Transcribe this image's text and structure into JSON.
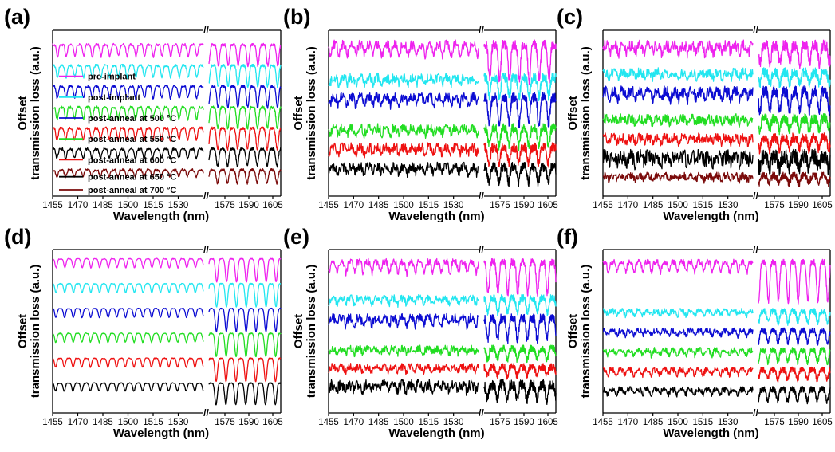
{
  "figure": {
    "x_axis_title": "Wavelength (nm)",
    "y_axis_title_lines": [
      "Offset",
      "transmission loss (a.u.)"
    ],
    "break_mark": "//",
    "x_ticks_left": [
      "1455",
      "1470",
      "1485",
      "1500",
      "1515",
      "1530"
    ],
    "x_ticks_right": [
      "1575",
      "1590",
      "1605"
    ],
    "series_colors": [
      "#ee22ee",
      "#22e6f0",
      "#0b0bd2",
      "#22dd22",
      "#ee1111",
      "#000000",
      "#7a0a0a"
    ]
  },
  "chart_data": [
    {
      "type": "line",
      "panel": "(a)",
      "title": "",
      "xlabel": "Wavelength (nm)",
      "ylabel": "Offset transmission loss (a.u.)",
      "x_ranges": [
        [
          1455,
          1545
        ],
        [
          1565,
          1610
        ]
      ],
      "legend": [
        "pre-implant",
        "post-implant",
        "post-anneal at 500 °C",
        "post-anneal at 550 °C",
        "post-anneal at 600 °C",
        "post-anneal at 650 °C",
        "post-anneal at 700 °C"
      ],
      "series": [
        {
          "name": "pre-implant",
          "color": "#ee22ee",
          "offset": 0.0,
          "amp_left": 0.9,
          "amp_right": 1.6,
          "noise": 0.1
        },
        {
          "name": "post-implant",
          "color": "#22e6f0",
          "offset": -1.6,
          "amp_left": 0.9,
          "amp_right": 1.6,
          "noise": 0.1
        },
        {
          "name": "post-anneal at 500 °C",
          "color": "#0b0bd2",
          "offset": -3.2,
          "amp_left": 0.9,
          "amp_right": 1.6,
          "noise": 0.1
        },
        {
          "name": "post-anneal at 550 °C",
          "color": "#22dd22",
          "offset": -4.8,
          "amp_left": 0.9,
          "amp_right": 1.6,
          "noise": 0.1
        },
        {
          "name": "post-anneal at 600 °C",
          "color": "#ee1111",
          "offset": -6.4,
          "amp_left": 0.9,
          "amp_right": 1.6,
          "noise": 0.1
        },
        {
          "name": "post-anneal at 650 °C",
          "color": "#000000",
          "offset": -8.0,
          "amp_left": 0.7,
          "amp_right": 1.3,
          "noise": 0.1
        },
        {
          "name": "post-anneal at 700 °C",
          "color": "#7a0a0a",
          "offset": -9.6,
          "amp_left": 0.5,
          "amp_right": 1.0,
          "noise": 0.1
        }
      ]
    },
    {
      "type": "line",
      "panel": "(b)",
      "title": "",
      "xlabel": "Wavelength (nm)",
      "ylabel": "Offset transmission loss (a.u.)",
      "x_ranges": [
        [
          1455,
          1545
        ],
        [
          1565,
          1610
        ]
      ],
      "series": [
        {
          "name": "pre-implant",
          "color": "#ee22ee",
          "offset": 0.0,
          "amp_left": 1.0,
          "amp_right": 3.6,
          "noise": 0.5
        },
        {
          "name": "post-implant",
          "color": "#22e6f0",
          "offset": -3.4,
          "amp_left": 0.6,
          "amp_right": 2.0,
          "noise": 0.5
        },
        {
          "name": "post-anneal at 500 °C",
          "color": "#0b0bd2",
          "offset": -5.4,
          "amp_left": 0.8,
          "amp_right": 2.8,
          "noise": 0.5
        },
        {
          "name": "post-anneal at 550 °C",
          "color": "#22dd22",
          "offset": -8.6,
          "amp_left": 0.6,
          "amp_right": 1.8,
          "noise": 0.5
        },
        {
          "name": "post-anneal at 600 °C",
          "color": "#ee1111",
          "offset": -10.6,
          "amp_left": 0.6,
          "amp_right": 1.6,
          "noise": 0.5
        },
        {
          "name": "post-anneal at 650 °C",
          "color": "#000000",
          "offset": -12.6,
          "amp_left": 0.6,
          "amp_right": 1.6,
          "noise": 0.5
        }
      ]
    },
    {
      "type": "line",
      "panel": "(c)",
      "title": "",
      "xlabel": "Wavelength (nm)",
      "ylabel": "Offset transmission loss (a.u.)",
      "x_ranges": [
        [
          1455,
          1545
        ],
        [
          1565,
          1610
        ]
      ],
      "series": [
        {
          "name": "pre-implant",
          "color": "#ee22ee",
          "offset": 0.0,
          "amp_left": 0.8,
          "amp_right": 1.8,
          "noise": 0.6
        },
        {
          "name": "post-implant",
          "color": "#22e6f0",
          "offset": -2.8,
          "amp_left": 0.5,
          "amp_right": 1.2,
          "noise": 0.5
        },
        {
          "name": "post-anneal at 500 °C",
          "color": "#0b0bd2",
          "offset": -4.8,
          "amp_left": 0.8,
          "amp_right": 2.0,
          "noise": 0.6
        },
        {
          "name": "post-anneal at 550 °C",
          "color": "#22dd22",
          "offset": -7.6,
          "amp_left": 0.5,
          "amp_right": 1.2,
          "noise": 0.5
        },
        {
          "name": "post-anneal at 600 °C",
          "color": "#ee1111",
          "offset": -9.6,
          "amp_left": 0.5,
          "amp_right": 1.2,
          "noise": 0.5
        },
        {
          "name": "post-anneal at 650 °C",
          "color": "#000000",
          "offset": -11.6,
          "amp_left": 0.6,
          "amp_right": 1.2,
          "noise": 0.8
        },
        {
          "name": "post-anneal at 700 °C",
          "color": "#7a0a0a",
          "offset": -13.6,
          "amp_left": 0.4,
          "amp_right": 0.8,
          "noise": 0.4
        }
      ]
    },
    {
      "type": "line",
      "panel": "(d)",
      "title": "",
      "xlabel": "Wavelength (nm)",
      "ylabel": "Offset transmission loss (a.u.)",
      "x_ranges": [
        [
          1455,
          1545
        ],
        [
          1565,
          1610
        ]
      ],
      "series": [
        {
          "name": "pre-implant",
          "color": "#ee22ee",
          "offset": 0.0,
          "amp_left": 1.0,
          "amp_right": 2.6,
          "noise": 0.05
        },
        {
          "name": "post-implant",
          "color": "#22e6f0",
          "offset": -2.8,
          "amp_left": 1.0,
          "amp_right": 2.6,
          "noise": 0.05
        },
        {
          "name": "post-anneal at 500 °C",
          "color": "#0b0bd2",
          "offset": -5.6,
          "amp_left": 1.0,
          "amp_right": 2.6,
          "noise": 0.05
        },
        {
          "name": "post-anneal at 550 °C",
          "color": "#22dd22",
          "offset": -8.4,
          "amp_left": 1.0,
          "amp_right": 2.6,
          "noise": 0.05
        },
        {
          "name": "post-anneal at 600 °C",
          "color": "#ee1111",
          "offset": -11.2,
          "amp_left": 1.0,
          "amp_right": 2.6,
          "noise": 0.05
        },
        {
          "name": "post-anneal at 650 °C",
          "color": "#000000",
          "offset": -14.0,
          "amp_left": 0.9,
          "amp_right": 2.4,
          "noise": 0.05
        }
      ]
    },
    {
      "type": "line",
      "panel": "(e)",
      "title": "",
      "xlabel": "Wavelength (nm)",
      "ylabel": "Offset transmission loss (a.u.)",
      "x_ranges": [
        [
          1455,
          1545
        ],
        [
          1565,
          1610
        ]
      ],
      "series": [
        {
          "name": "pre-implant",
          "color": "#ee22ee",
          "offset": 0.0,
          "amp_left": 1.2,
          "amp_right": 3.4,
          "noise": 0.4
        },
        {
          "name": "post-implant",
          "color": "#22e6f0",
          "offset": -4.0,
          "amp_left": 0.6,
          "amp_right": 1.6,
          "noise": 0.4
        },
        {
          "name": "post-anneal at 500 °C",
          "color": "#0b0bd2",
          "offset": -6.2,
          "amp_left": 0.8,
          "amp_right": 2.4,
          "noise": 0.5
        },
        {
          "name": "post-anneal at 550 °C",
          "color": "#22dd22",
          "offset": -9.6,
          "amp_left": 0.5,
          "amp_right": 1.2,
          "noise": 0.4
        },
        {
          "name": "post-anneal at 600 °C",
          "color": "#ee1111",
          "offset": -11.6,
          "amp_left": 0.5,
          "amp_right": 1.0,
          "noise": 0.4
        },
        {
          "name": "post-anneal at 650 °C",
          "color": "#000000",
          "offset": -13.6,
          "amp_left": 0.6,
          "amp_right": 1.6,
          "noise": 0.6
        }
      ]
    },
    {
      "type": "line",
      "panel": "(f)",
      "title": "",
      "xlabel": "Wavelength (nm)",
      "ylabel": "Offset transmission loss (a.u.)",
      "x_ranges": [
        [
          1455,
          1545
        ],
        [
          1565,
          1610
        ]
      ],
      "series": [
        {
          "name": "pre-implant",
          "color": "#ee22ee",
          "offset": 0.0,
          "amp_left": 1.0,
          "amp_right": 4.0,
          "noise": 0.3
        },
        {
          "name": "post-implant",
          "color": "#22e6f0",
          "offset": -5.0,
          "amp_left": 0.4,
          "amp_right": 1.2,
          "noise": 0.3
        },
        {
          "name": "post-anneal at 500 °C",
          "color": "#0b0bd2",
          "offset": -7.0,
          "amp_left": 0.5,
          "amp_right": 1.2,
          "noise": 0.3
        },
        {
          "name": "post-anneal at 550 °C",
          "color": "#22dd22",
          "offset": -9.0,
          "amp_left": 0.5,
          "amp_right": 1.2,
          "noise": 0.3
        },
        {
          "name": "post-anneal at 600 °C",
          "color": "#ee1111",
          "offset": -11.0,
          "amp_left": 0.5,
          "amp_right": 1.0,
          "noise": 0.3
        },
        {
          "name": "post-anneal at 650 °C",
          "color": "#000000",
          "offset": -13.0,
          "amp_left": 0.5,
          "amp_right": 1.2,
          "noise": 0.3
        }
      ]
    }
  ]
}
